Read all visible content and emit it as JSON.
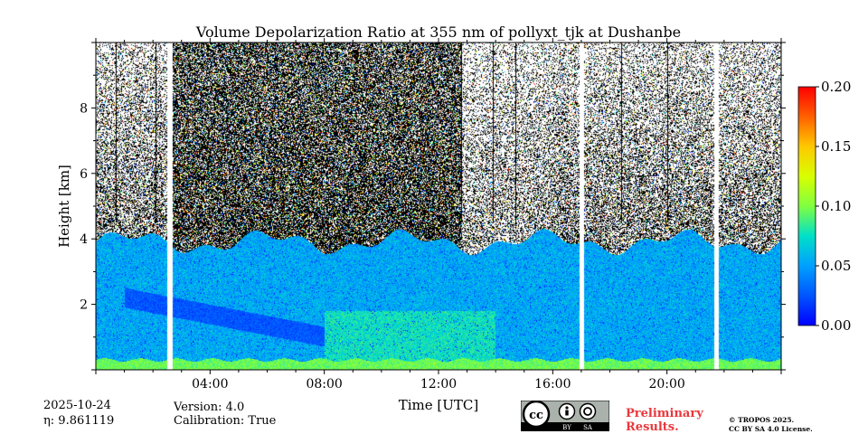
{
  "chart_data": {
    "type": "heatmap",
    "title": "Volume Depolarization Ratio at 355 nm of pollyxt_tjk at Dushanbe",
    "xlabel": "Time [UTC]",
    "ylabel": "Height [km]",
    "x_range_hours": [
      0,
      24
    ],
    "ylim_km": [
      0,
      10
    ],
    "x_ticks": [
      {
        "hour": 4,
        "label": "04:00"
      },
      {
        "hour": 8,
        "label": "08:00"
      },
      {
        "hour": 12,
        "label": "12:00"
      },
      {
        "hour": 16,
        "label": "16:00"
      },
      {
        "hour": 20,
        "label": "20:00"
      }
    ],
    "y_ticks": [
      {
        "km": 2,
        "label": "2"
      },
      {
        "km": 4,
        "label": "4"
      },
      {
        "km": 6,
        "label": "6"
      },
      {
        "km": 8,
        "label": "8"
      }
    ],
    "colorbar": {
      "colormap": "jet",
      "min": 0.0,
      "max": 0.2,
      "ticks": [
        {
          "value": 0.0,
          "label": "0.00"
        },
        {
          "value": 0.05,
          "label": "0.05"
        },
        {
          "value": 0.1,
          "label": "0.10"
        },
        {
          "value": 0.15,
          "label": "0.15"
        },
        {
          "value": 0.2,
          "label": "0.20"
        }
      ]
    },
    "data_gaps_hours": [
      [
        2.5,
        2.7
      ],
      [
        16.95,
        17.1
      ],
      [
        21.65,
        21.8
      ]
    ],
    "layers": [
      {
        "name": "boundary layer",
        "top_km": 3.9,
        "value_approx": 0.03
      },
      {
        "name": "near-ground layer",
        "top_km": 0.3,
        "value_approx": 0.08
      },
      {
        "name": "noise region",
        "bottom_km": 4.0,
        "top_km": 10.0
      }
    ]
  },
  "meta": {
    "date": "2025-10-24",
    "eta": "η: 9.861119",
    "version": "Version: 4.0",
    "calibration": "Calibration: True"
  },
  "license": {
    "badge_cc": "cc",
    "badge_by": "BY",
    "badge_sa": "SA",
    "prelim_line1": "Preliminary",
    "prelim_line2": "Results.",
    "copyright": "© TROPOS 2025.",
    "license_text": "CC BY SA 4.0 License."
  }
}
